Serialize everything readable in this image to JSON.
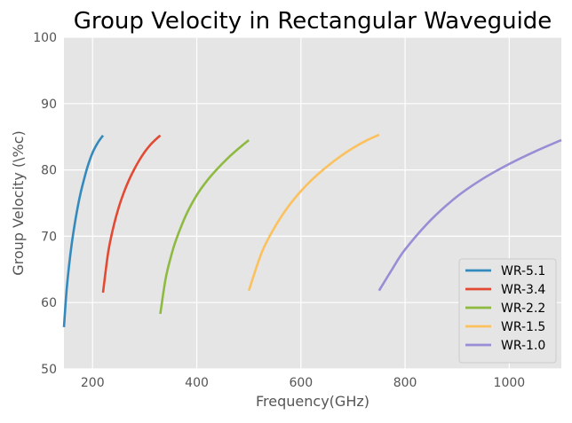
{
  "chart_data": {
    "type": "line",
    "title": "Group Velocity in Rectangular Waveguide",
    "xlabel": "Frequency(GHz)",
    "ylabel": "Group Velocity (\\%c)",
    "xlim": [
      145,
      1100
    ],
    "ylim": [
      50,
      100
    ],
    "xticks": [
      200,
      400,
      600,
      800,
      1000
    ],
    "yticks": [
      50,
      60,
      70,
      80,
      90,
      100
    ],
    "grid": true,
    "legend_position": "lower-right",
    "background": "#e5e5e5",
    "series": [
      {
        "name": "WR-5.1",
        "color": "#348abd",
        "x": [
          145,
          150,
          155,
          160,
          165,
          170,
          175,
          180,
          190,
          200,
          210,
          220
        ],
        "y": [
          56.3,
          61.8,
          65.7,
          68.9,
          71.5,
          73.8,
          75.8,
          77.5,
          80.4,
          82.6,
          84.1,
          85.2
        ]
      },
      {
        "name": "WR-3.4",
        "color": "#e24a33",
        "x": [
          220,
          230,
          240,
          250,
          260,
          270,
          280,
          290,
          300,
          310,
          320,
          330
        ],
        "y": [
          61.5,
          67.6,
          71.4,
          74.3,
          76.6,
          78.5,
          80.1,
          81.5,
          82.7,
          83.7,
          84.5,
          85.2
        ]
      },
      {
        "name": "WR-2.2",
        "color": "#8eba42",
        "x": [
          330,
          340,
          350,
          360,
          380,
          400,
          420,
          440,
          460,
          480,
          500
        ],
        "y": [
          58.3,
          63.5,
          66.8,
          69.4,
          73.3,
          76.2,
          78.4,
          80.2,
          81.8,
          83.2,
          84.5
        ]
      },
      {
        "name": "WR-1.5",
        "color": "#fbc15e",
        "x": [
          500,
          525,
          550,
          575,
          600,
          625,
          650,
          675,
          700,
          725,
          750
        ],
        "y": [
          61.8,
          67.6,
          71.4,
          74.4,
          76.8,
          78.8,
          80.5,
          82.0,
          83.3,
          84.4,
          85.3
        ]
      },
      {
        "name": "WR-1.0",
        "color": "#988ed5",
        "x": [
          750,
          775,
          800,
          850,
          900,
          950,
          1000,
          1050,
          1100
        ],
        "y": [
          61.8,
          65.0,
          68.0,
          72.5,
          76.0,
          78.7,
          80.9,
          82.8,
          84.5
        ]
      }
    ]
  }
}
